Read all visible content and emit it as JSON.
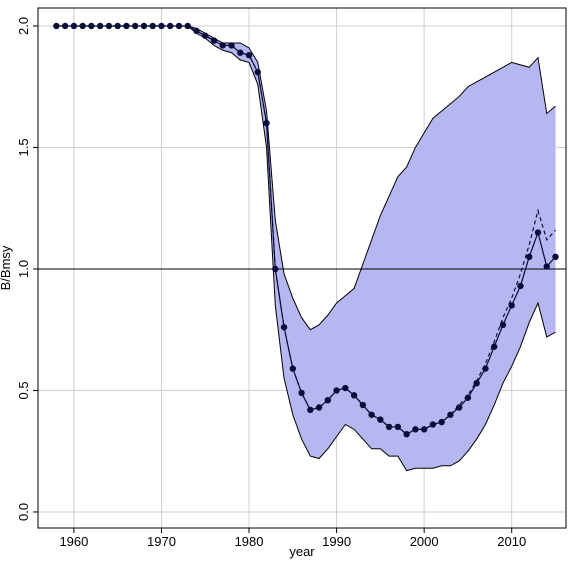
{
  "chart_data": {
    "type": "line",
    "xlabel": "year",
    "ylabel": "B/Bmsy",
    "x": [
      1958,
      1959,
      1960,
      1961,
      1962,
      1963,
      1964,
      1965,
      1966,
      1967,
      1968,
      1969,
      1970,
      1971,
      1972,
      1973,
      1974,
      1975,
      1976,
      1977,
      1978,
      1979,
      1980,
      1981,
      1982,
      1983,
      1984,
      1985,
      1986,
      1987,
      1988,
      1989,
      1990,
      1991,
      1992,
      1993,
      1994,
      1995,
      1996,
      1997,
      1998,
      1999,
      2000,
      2001,
      2002,
      2003,
      2004,
      2005,
      2006,
      2007,
      2008,
      2009,
      2010,
      2011,
      2012,
      2013,
      2014,
      2015
    ],
    "band": {
      "color": "#b6b6f0",
      "upper": [
        2,
        2,
        2,
        2,
        2,
        2,
        2,
        2,
        2,
        2,
        2,
        2,
        2,
        2,
        2,
        2,
        1.99,
        1.97,
        1.95,
        1.93,
        1.93,
        1.93,
        1.91,
        1.85,
        1.65,
        1.2,
        0.98,
        0.88,
        0.8,
        0.75,
        0.77,
        0.81,
        0.86,
        0.89,
        0.92,
        1.02,
        1.12,
        1.22,
        1.3,
        1.38,
        1.42,
        1.5,
        1.56,
        1.62,
        1.65,
        1.68,
        1.71,
        1.75,
        1.77,
        1.79,
        1.81,
        1.83,
        1.85,
        1.84,
        1.83,
        1.87,
        1.64,
        1.67
      ],
      "lower": [
        2,
        2,
        2,
        2,
        2,
        2,
        2,
        2,
        2,
        2,
        2,
        2,
        2,
        2,
        2,
        2,
        1.97,
        1.95,
        1.92,
        1.9,
        1.89,
        1.86,
        1.85,
        1.76,
        1.5,
        0.85,
        0.55,
        0.4,
        0.3,
        0.23,
        0.22,
        0.26,
        0.31,
        0.36,
        0.34,
        0.3,
        0.26,
        0.26,
        0.23,
        0.23,
        0.17,
        0.18,
        0.18,
        0.18,
        0.19,
        0.19,
        0.21,
        0.25,
        0.3,
        0.36,
        0.44,
        0.53,
        0.6,
        0.68,
        0.78,
        0.86,
        0.72,
        0.74
      ]
    },
    "series": [
      {
        "color": "#111133",
        "dashed": true,
        "markers": false,
        "values": [
          2,
          2,
          2,
          2,
          2,
          2,
          2,
          2,
          2,
          2,
          2,
          2,
          2,
          2,
          2,
          2,
          1.98,
          1.96,
          1.94,
          1.92,
          1.92,
          1.89,
          1.88,
          1.81,
          1.6,
          1.0,
          0.76,
          0.59,
          0.49,
          0.42,
          0.43,
          0.46,
          0.5,
          0.51,
          0.48,
          0.44,
          0.4,
          0.38,
          0.35,
          0.35,
          0.32,
          0.34,
          0.34,
          0.36,
          0.37,
          0.4,
          0.44,
          0.48,
          0.54,
          0.61,
          0.7,
          0.8,
          0.88,
          0.98,
          1.1,
          1.24,
          1.12,
          1.16
        ]
      },
      {
        "color": "#0c0c3a",
        "dashed": false,
        "markers": true,
        "values": [
          2,
          2,
          2,
          2,
          2,
          2,
          2,
          2,
          2,
          2,
          2,
          2,
          2,
          2,
          2,
          2,
          1.98,
          1.96,
          1.94,
          1.92,
          1.92,
          1.89,
          1.88,
          1.81,
          1.6,
          1.0,
          0.76,
          0.59,
          0.49,
          0.42,
          0.43,
          0.46,
          0.5,
          0.51,
          0.48,
          0.44,
          0.4,
          0.38,
          0.35,
          0.35,
          0.32,
          0.34,
          0.34,
          0.36,
          0.37,
          0.4,
          0.43,
          0.47,
          0.53,
          0.59,
          0.68,
          0.77,
          0.85,
          0.93,
          1.05,
          1.15,
          1.01,
          1.05
        ]
      }
    ],
    "reference_line": 1,
    "xlim": [
      1955.9,
      2016.2
    ],
    "ylim": [
      -0.066,
      2.074
    ],
    "xticks": [
      1960,
      1970,
      1980,
      1990,
      2000,
      2010
    ],
    "yticks": [
      {
        "value": 0,
        "label": "0.0"
      },
      0.5,
      {
        "value": 1,
        "label": "1.0"
      },
      1.5,
      {
        "value": 2,
        "label": "2.0"
      }
    ],
    "grid": true
  }
}
